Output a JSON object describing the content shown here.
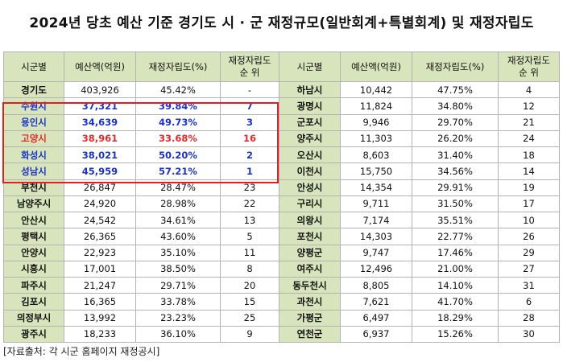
{
  "title": "2024년 당초 예산 기준 경기도 시 · 군 재정규모(일반회계+특별회계) 및 재정자립도",
  "headers": {
    "name": "시군별",
    "budget": "예산액(억원)",
    "ratio": "재정자립도(%)",
    "rank": "재정자립도\n순  위"
  },
  "left_rows": [
    {
      "name": "경기도",
      "budget": "403,926",
      "ratio": "45.42%",
      "rank": "-",
      "style": ""
    },
    {
      "name": "수원시",
      "budget": "37,321",
      "ratio": "39.84%",
      "rank": "7",
      "style": "blue"
    },
    {
      "name": "용인시",
      "budget": "34,639",
      "ratio": "49.73%",
      "rank": "3",
      "style": "blue"
    },
    {
      "name": "고양시",
      "budget": "38,961",
      "ratio": "33.68%",
      "rank": "16",
      "style": "red"
    },
    {
      "name": "화성시",
      "budget": "38,021",
      "ratio": "50.20%",
      "rank": "2",
      "style": "blue"
    },
    {
      "name": "성남시",
      "budget": "45,959",
      "ratio": "57.21%",
      "rank": "1",
      "style": "blue"
    },
    {
      "name": "부천시",
      "budget": "26,847",
      "ratio": "28.47%",
      "rank": "23",
      "style": ""
    },
    {
      "name": "남양주시",
      "budget": "24,920",
      "ratio": "28.98%",
      "rank": "22",
      "style": ""
    },
    {
      "name": "안산시",
      "budget": "24,542",
      "ratio": "34.61%",
      "rank": "13",
      "style": ""
    },
    {
      "name": "평택시",
      "budget": "26,365",
      "ratio": "43.60%",
      "rank": "5",
      "style": ""
    },
    {
      "name": "안양시",
      "budget": "22,923",
      "ratio": "35.10%",
      "rank": "11",
      "style": ""
    },
    {
      "name": "시흥시",
      "budget": "17,001",
      "ratio": "38.50%",
      "rank": "8",
      "style": ""
    },
    {
      "name": "파주시",
      "budget": "21,247",
      "ratio": "29.71%",
      "rank": "20",
      "style": ""
    },
    {
      "name": "김포시",
      "budget": "16,365",
      "ratio": "33.78%",
      "rank": "15",
      "style": ""
    },
    {
      "name": "의정부시",
      "budget": "13,992",
      "ratio": "23.23%",
      "rank": "25",
      "style": ""
    },
    {
      "name": "광주시",
      "budget": "18,233",
      "ratio": "36.10%",
      "rank": "9",
      "style": ""
    }
  ],
  "right_rows": [
    {
      "name": "하남시",
      "budget": "10,442",
      "ratio": "47.75%",
      "rank": "4"
    },
    {
      "name": "광명시",
      "budget": "11,824",
      "ratio": "34.80%",
      "rank": "12"
    },
    {
      "name": "군포시",
      "budget": "9,946",
      "ratio": "29.70%",
      "rank": "21"
    },
    {
      "name": "양주시",
      "budget": "11,303",
      "ratio": "26.20%",
      "rank": "24"
    },
    {
      "name": "오산시",
      "budget": "8,603",
      "ratio": "31.40%",
      "rank": "18"
    },
    {
      "name": "이천시",
      "budget": "15,750",
      "ratio": "34.56%",
      "rank": "14"
    },
    {
      "name": "안성시",
      "budget": "14,354",
      "ratio": "29.91%",
      "rank": "19"
    },
    {
      "name": "구리시",
      "budget": "9,711",
      "ratio": "31.50%",
      "rank": "17"
    },
    {
      "name": "의왕시",
      "budget": "7,174",
      "ratio": "35.51%",
      "rank": "10"
    },
    {
      "name": "포천시",
      "budget": "14,303",
      "ratio": "22.77%",
      "rank": "26"
    },
    {
      "name": "양평군",
      "budget": "9,747",
      "ratio": "17.46%",
      "rank": "29"
    },
    {
      "name": "여주시",
      "budget": "12,496",
      "ratio": "21.00%",
      "rank": "27"
    },
    {
      "name": "동두천시",
      "budget": "8,805",
      "ratio": "14.10%",
      "rank": "31"
    },
    {
      "name": "과천시",
      "budget": "7,621",
      "ratio": "41.70%",
      "rank": "6"
    },
    {
      "name": "가평군",
      "budget": "6,497",
      "ratio": "18.29%",
      "rank": "28"
    },
    {
      "name": "연천군",
      "budget": "6,937",
      "ratio": "15.26%",
      "rank": "30"
    }
  ],
  "colors": {
    "header_bg": "#d8e4bc",
    "highlight_blue": "#1a33c8",
    "highlight_red": "#e22b2b",
    "box_red": "#e02020"
  },
  "source": "[자료출처: 각 시군 홈페이지 재정공시]"
}
